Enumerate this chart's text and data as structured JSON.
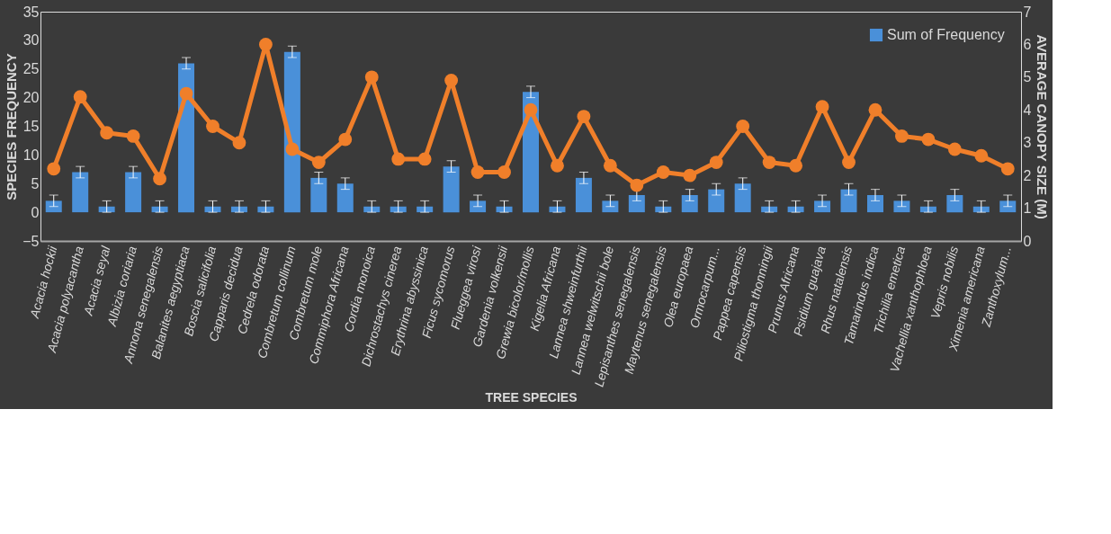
{
  "chart_data": {
    "type": "bar",
    "xlabel": "TREE SPECIES",
    "ylabel": "SPECIES FREQUENCY",
    "y2label": "AVERAGE CANOPY SIZE (M)",
    "categories": [
      "Acacia hockii",
      "Acacia polyacantha",
      "Acacia seyal",
      "Albizia coriaria",
      "Annona senegalensis",
      "Balanites aegyptiaca",
      "Boscia salicifolia",
      "Capparis decidua",
      "Cedrela odorata",
      "Combretum collinum",
      "Combretum mole",
      "Commiphora Africana",
      "Cordia monoica",
      "Dichrostachys cinerea",
      "Erythrina abyssinica",
      "Ficus sycomorus",
      "Flueggea virosi",
      "Gardenia volkensii",
      "Grewia bicolor/mollis",
      "Kigelia Africana",
      "Lannea shweinfurthii",
      "Lannea welwitschii bole",
      "Lepisanthes senegalensis",
      "Maytenus senegalensis",
      "Olea europaea",
      "Ormocarpum...",
      "Pappea capensis",
      "Piliostigma thonningii",
      "Prunus Africana",
      "Psidium guajava",
      "Rhus natalensis",
      "Tamarindus indica",
      "Trichilia emetica",
      "Vachellia xanthophloea",
      "Vepris nobilis",
      "Ximenia americana",
      "Zanthoxylum..."
    ],
    "series": [
      {
        "name": "Sum of Frequency",
        "color": "#4a90d9",
        "values": [
          2,
          7,
          1,
          7,
          1,
          26,
          1,
          1,
          1,
          28,
          6,
          5,
          1,
          1,
          1,
          8,
          2,
          1,
          21,
          1,
          6,
          2,
          3,
          1,
          3,
          4,
          5,
          1,
          1,
          2,
          4,
          3,
          2,
          1,
          3,
          1,
          2
        ],
        "errors": [
          1,
          1,
          1,
          1,
          1,
          1,
          1,
          1,
          1,
          1,
          1,
          1,
          1,
          1,
          1,
          1,
          1,
          1,
          1,
          1,
          1,
          1,
          1,
          1,
          1,
          1,
          1,
          1,
          1,
          1,
          1,
          1,
          1,
          1,
          1,
          1,
          1
        ]
      },
      {
        "type": "line",
        "axis": "y2",
        "color": "#f07f2a",
        "marker": "circle",
        "values": [
          2.2,
          4.4,
          3.3,
          3.2,
          1.9,
          4.5,
          3.5,
          3.0,
          6.0,
          2.8,
          2.4,
          3.1,
          5.0,
          2.5,
          2.5,
          4.9,
          2.1,
          2.1,
          4.0,
          2.3,
          3.8,
          2.3,
          1.7,
          2.1,
          2.0,
          2.4,
          3.5,
          2.4,
          2.3,
          4.1,
          2.4,
          4.0,
          3.2,
          3.1,
          2.8,
          2.6,
          2.2
        ]
      }
    ],
    "ylim": [
      -5,
      35
    ],
    "yticks": [
      -5,
      0,
      5,
      10,
      15,
      20,
      25,
      30,
      35
    ],
    "y2lim": [
      0,
      7
    ],
    "y2ticks": [
      0,
      1,
      2,
      3,
      4,
      5,
      6,
      7
    ],
    "grid": false,
    "legend": "top right"
  }
}
